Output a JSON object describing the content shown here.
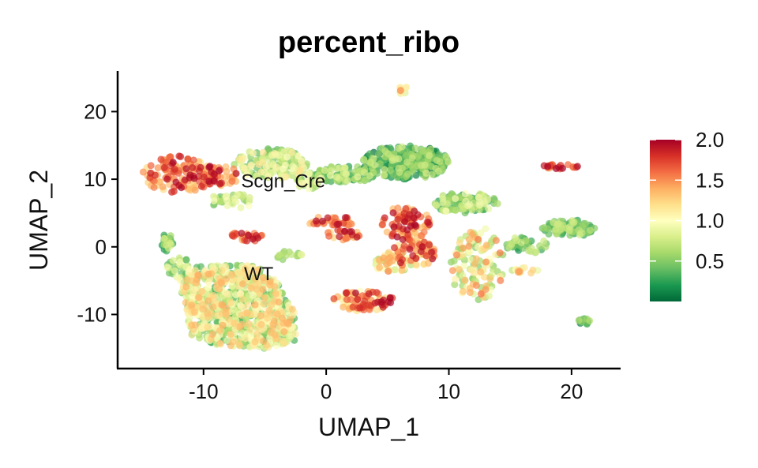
{
  "chart_data": {
    "type": "scatter",
    "title": "percent_ribo",
    "xlabel": "UMAP_1",
    "ylabel": "UMAP_2",
    "xlim": [
      -17,
      24
    ],
    "ylim": [
      -18,
      26
    ],
    "xticks": [
      -10,
      0,
      10,
      20
    ],
    "yticks": [
      -10,
      0,
      10,
      20
    ],
    "xtick_labels": [
      "-10",
      "0",
      "10",
      "20"
    ],
    "ytick_labels": [
      "-10",
      "0",
      "10",
      "20"
    ],
    "grid": false,
    "annotations": [
      {
        "text": "Scgn_Cre",
        "x": -3.5,
        "y": 9.7
      },
      {
        "text": "WT",
        "x": -5.5,
        "y": -4.0
      }
    ],
    "color_scale": {
      "name": "RdYlGn reversed",
      "min": 0.0,
      "max": 2.0,
      "ticks": [
        2.0,
        1.5,
        1.0,
        0.5
      ],
      "tick_labels": [
        "2.0",
        "1.5",
        "1.0",
        "0.5"
      ],
      "colors": [
        "#006837",
        "#1a9850",
        "#66bd63",
        "#a6d96a",
        "#d9ef8b",
        "#ffffbf",
        "#fee08b",
        "#fdae61",
        "#f46d43",
        "#d73027",
        "#a50026"
      ],
      "legend_position": "right"
    },
    "clusters": [
      {
        "x": [
          -6.5,
          -3.5
        ],
        "y": [
          -15,
          -3
        ],
        "shape": "poly",
        "poly": [
          [
            -11,
            -3
          ],
          [
            -6,
            -2.5
          ],
          [
            -4,
            -5
          ],
          [
            -2.5,
            -10
          ],
          [
            -2.5,
            -14
          ],
          [
            -5,
            -15
          ],
          [
            -9,
            -14.5
          ],
          [
            -11,
            -13
          ],
          [
            -11.5,
            -9
          ],
          [
            -12,
            -5
          ]
        ],
        "n": 900,
        "v": [
          0.3,
          1.4
        ]
      },
      {
        "x": [
          -15,
          -9
        ],
        "y": [
          8,
          13.5
        ],
        "n": 140,
        "v": [
          1.2,
          2.0
        ]
      },
      {
        "x": [
          -10,
          -7
        ],
        "y": [
          9,
          12
        ],
        "n": 40,
        "v": [
          1.3,
          2.0
        ]
      },
      {
        "x": [
          -7.5,
          -1.5
        ],
        "y": [
          10,
          14.5
        ],
        "n": 160,
        "v": [
          0.4,
          1.2
        ]
      },
      {
        "x": [
          -9.5,
          -6
        ],
        "y": [
          5.5,
          8
        ],
        "n": 40,
        "v": [
          0.4,
          1.0
        ]
      },
      {
        "x": [
          -2.5,
          0
        ],
        "y": [
          8.5,
          11
        ],
        "n": 30,
        "v": [
          0.5,
          1.1
        ]
      },
      {
        "x": [
          -1,
          4
        ],
        "y": [
          9.5,
          12
        ],
        "n": 90,
        "v": [
          0.2,
          0.9
        ]
      },
      {
        "x": [
          3,
          10
        ],
        "y": [
          10,
          15
        ],
        "n": 260,
        "v": [
          0.0,
          0.8
        ]
      },
      {
        "x": [
          5.7,
          6.7
        ],
        "y": [
          22.5,
          23.8
        ],
        "n": 10,
        "v": [
          0.8,
          1.6
        ]
      },
      {
        "x": [
          -13.5,
          -12.5
        ],
        "y": [
          -1,
          2
        ],
        "n": 25,
        "v": [
          0.2,
          0.8
        ]
      },
      {
        "x": [
          -8,
          -5
        ],
        "y": [
          0.8,
          2.2
        ],
        "n": 25,
        "v": [
          1.3,
          2.0
        ]
      },
      {
        "x": [
          -1.5,
          2.5
        ],
        "y": [
          3,
          4.5
        ],
        "n": 35,
        "v": [
          1.3,
          2.0
        ]
      },
      {
        "x": [
          -0.5,
          3
        ],
        "y": [
          1,
          2.5
        ],
        "n": 25,
        "v": [
          1.2,
          2.0
        ]
      },
      {
        "x": [
          4.5,
          8.5
        ],
        "y": [
          1,
          6
        ],
        "n": 90,
        "v": [
          1.3,
          2.0
        ]
      },
      {
        "x": [
          5,
          9
        ],
        "y": [
          -3,
          1
        ],
        "n": 80,
        "v": [
          1.0,
          2.0
        ]
      },
      {
        "x": [
          8.5,
          14
        ],
        "y": [
          5,
          8
        ],
        "n": 110,
        "v": [
          0.2,
          1.0
        ]
      },
      {
        "x": [
          10,
          14.5
        ],
        "y": [
          -8,
          3
        ],
        "n": 120,
        "v": [
          0.5,
          1.6
        ]
      },
      {
        "x": [
          14.5,
          18
        ],
        "y": [
          -1,
          1.5
        ],
        "n": 40,
        "v": [
          0.2,
          0.8
        ]
      },
      {
        "x": [
          17.5,
          22
        ],
        "y": [
          1.5,
          4
        ],
        "n": 80,
        "v": [
          0.2,
          0.8
        ]
      },
      {
        "x": [
          15,
          17.5
        ],
        "y": [
          -4,
          -3
        ],
        "n": 15,
        "v": [
          0.6,
          1.5
        ]
      },
      {
        "x": [
          17.5,
          20.5
        ],
        "y": [
          11.5,
          12.3
        ],
        "n": 20,
        "v": [
          1.4,
          2.0
        ]
      },
      {
        "x": [
          20.5,
          21.5
        ],
        "y": [
          -11.5,
          -10.5
        ],
        "n": 15,
        "v": [
          0.1,
          0.7
        ]
      },
      {
        "x": [
          0.5,
          5.5
        ],
        "y": [
          -9.5,
          -6.5
        ],
        "n": 90,
        "v": [
          1.0,
          2.0
        ]
      },
      {
        "x": [
          -4.5,
          -2
        ],
        "y": [
          -2,
          -0.5
        ],
        "n": 15,
        "v": [
          0.5,
          1.0
        ]
      },
      {
        "x": [
          -13,
          -11
        ],
        "y": [
          -5,
          -1
        ],
        "n": 30,
        "v": [
          0.4,
          1.0
        ]
      },
      {
        "x": [
          4,
          7
        ],
        "y": [
          -4,
          -1
        ],
        "n": 40,
        "v": [
          0.6,
          1.6
        ]
      },
      {
        "x": [
          6,
          10
        ],
        "y": [
          12,
          14
        ],
        "n": 60,
        "v": [
          0.0,
          0.6
        ]
      }
    ]
  }
}
